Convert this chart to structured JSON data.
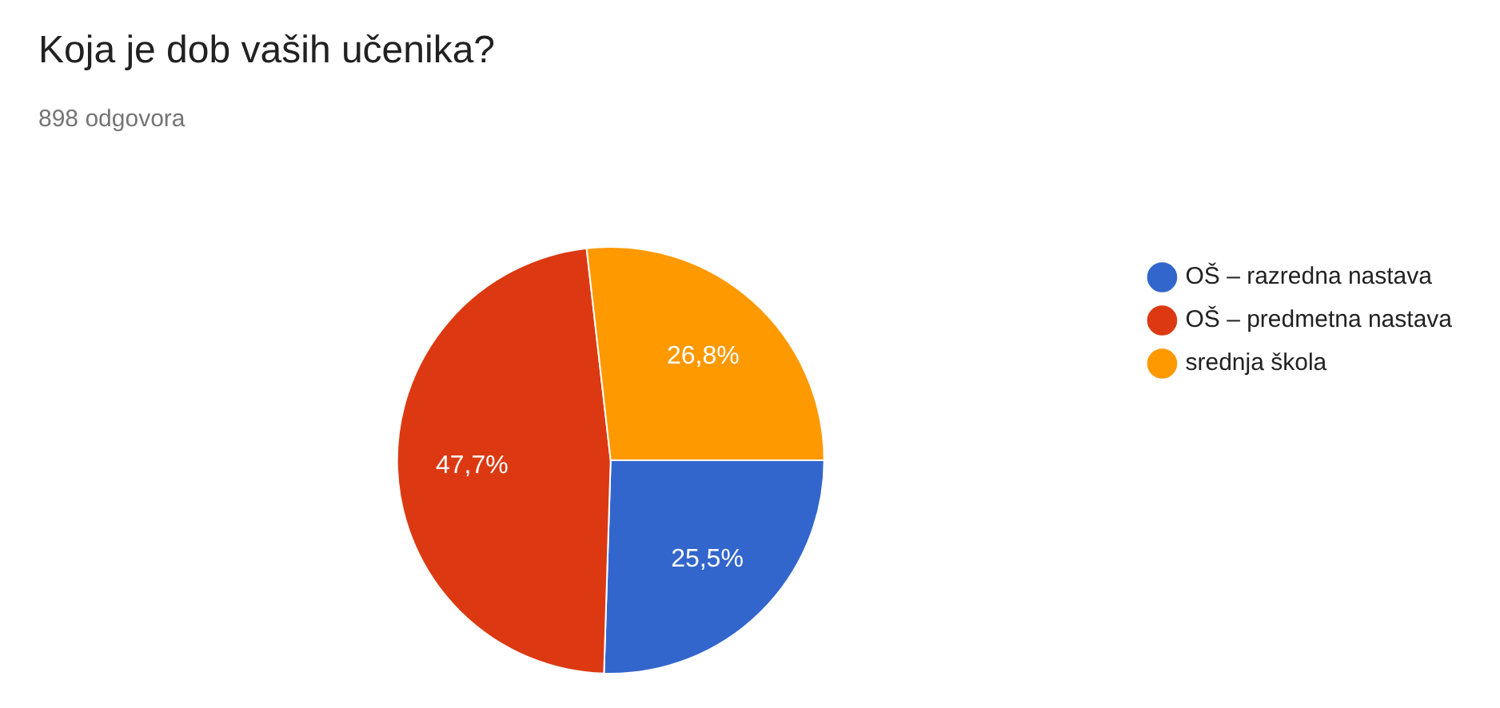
{
  "chart_data": {
    "type": "pie",
    "title": "Koja je dob vaših učenika?",
    "subtitle": "898 odgovora",
    "categories": [
      "OŠ – razredna nastava",
      "OŠ – predmetna nastava",
      "srednja škola"
    ],
    "values": [
      25.5,
      47.7,
      26.8
    ],
    "value_labels": [
      "25,5%",
      "47,7%",
      "26,8%"
    ],
    "colors": [
      "#3366cc",
      "#dc3912",
      "#ff9900"
    ],
    "legend": "right"
  }
}
